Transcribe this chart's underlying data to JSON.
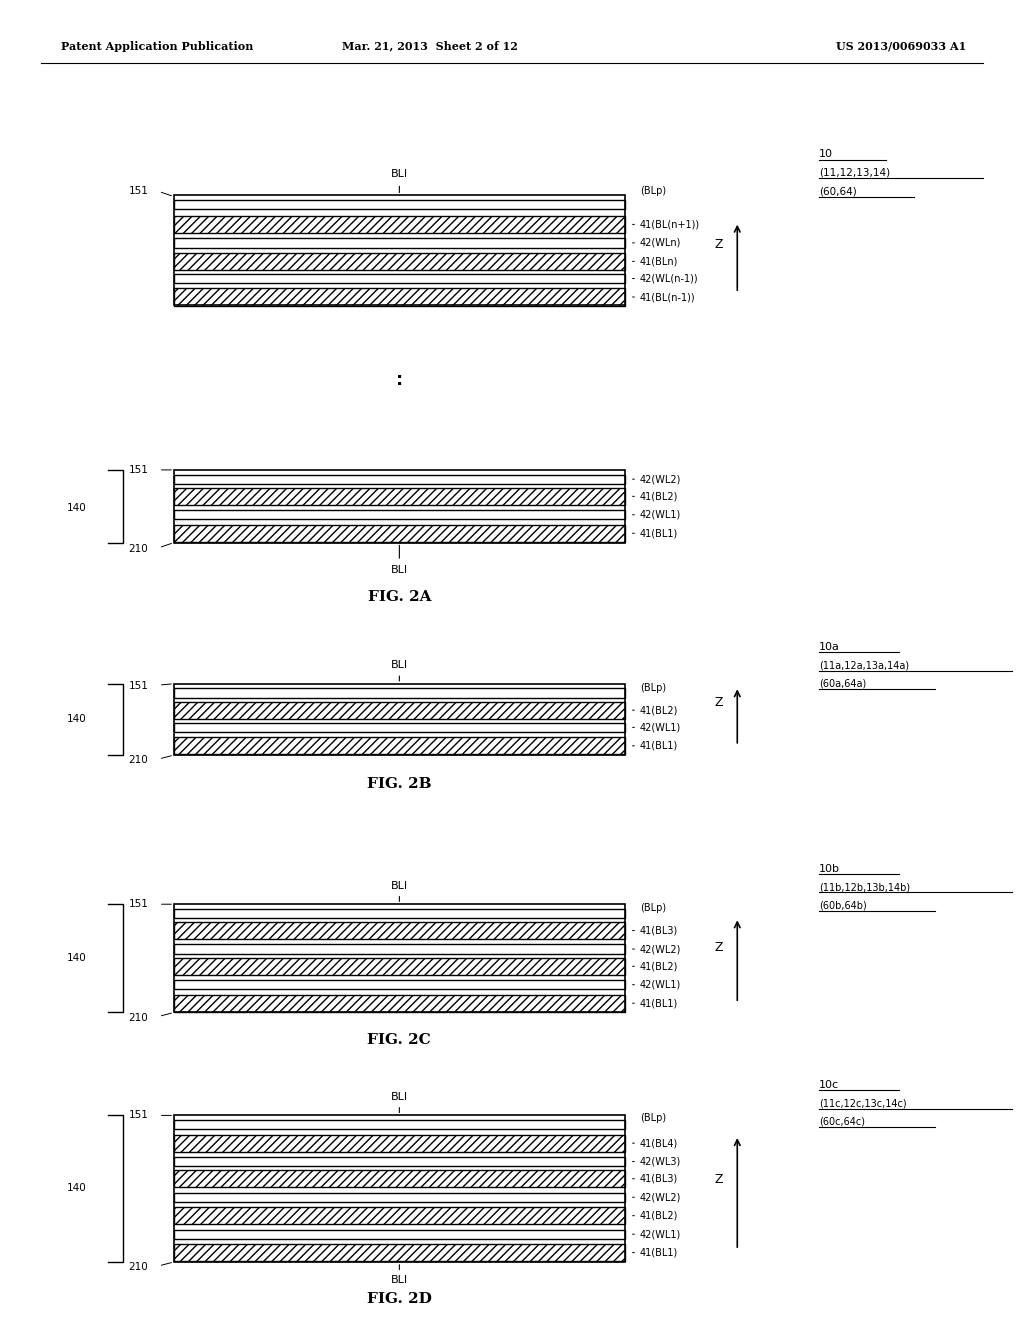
{
  "header_left": "Patent Application Publication",
  "header_mid": "Mar. 21, 2013  Sheet 2 of 12",
  "header_right": "US 2013/0069033 A1",
  "bg_color": "#ffffff",
  "fig2a": {
    "label": "FIG. 2A",
    "ref_label": "10",
    "ref_sub": "(11,12,13,14)",
    "ref_sub2": "(60,64)"
  },
  "fig2b": {
    "label": "FIG. 2B",
    "ref_label": "10a",
    "ref_sub": "(11a,12a,13a,14a)",
    "ref_sub2": "(60a,64a)"
  },
  "fig2c": {
    "label": "FIG. 2C",
    "ref_label": "10b",
    "ref_sub": "(11b,12b,13b,14b)",
    "ref_sub2": "(60b,64b)"
  },
  "fig2d": {
    "label": "FIG. 2D",
    "ref_label": "10c",
    "ref_sub": "(11c,12c,13c,14c)",
    "ref_sub2": "(60c,64c)"
  }
}
